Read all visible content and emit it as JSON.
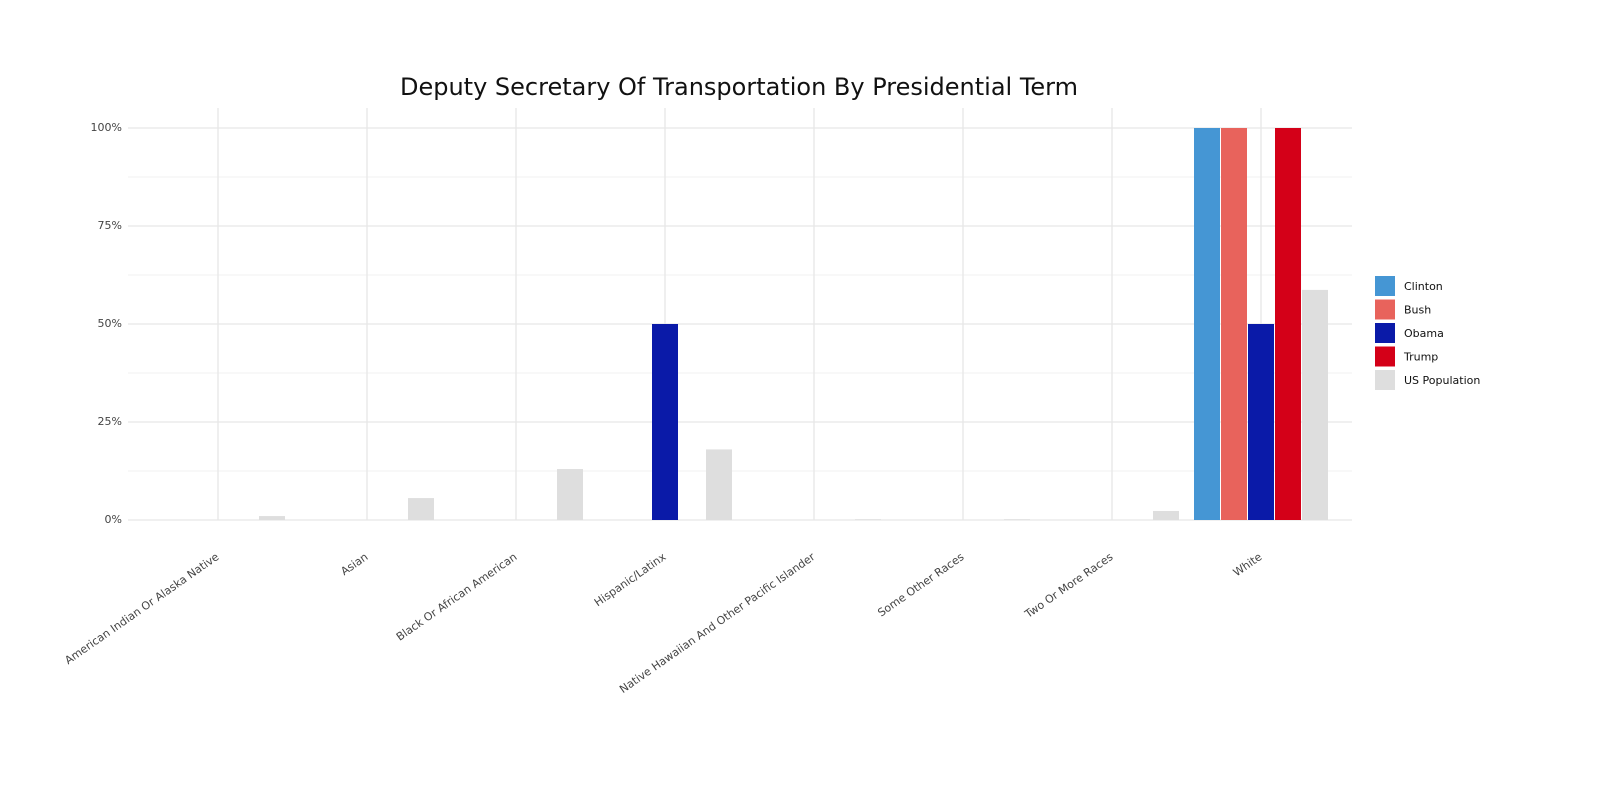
{
  "chart_data": {
    "type": "bar",
    "title": "Deputy Secretary Of Transportation By Presidential Term",
    "categories": [
      "American Indian Or Alaska Native",
      "Asian",
      "Black Or African American",
      "Hispanic/Latinx",
      "Native Hawaiian And Other Pacific Islander",
      "Some Other Races",
      "Two Or More Races",
      "White"
    ],
    "series": [
      {
        "name": "Clinton",
        "color": "#4596d4",
        "values": [
          0,
          0,
          0,
          0,
          0,
          0,
          0,
          100
        ]
      },
      {
        "name": "Bush",
        "color": "#e8635c",
        "values": [
          0,
          0,
          0,
          0,
          0,
          0,
          0,
          100
        ]
      },
      {
        "name": "Obama",
        "color": "#0a1aa8",
        "values": [
          0,
          0,
          0,
          50,
          0,
          0,
          0,
          50
        ]
      },
      {
        "name": "Trump",
        "color": "#d40018",
        "values": [
          0,
          0,
          0,
          0,
          0,
          0,
          0,
          100
        ]
      },
      {
        "name": "US Population",
        "color": "#dedede",
        "values": [
          1,
          5.6,
          13,
          18,
          0.2,
          0.2,
          2.3,
          58.7
        ]
      }
    ],
    "ylim": [
      0,
      100
    ],
    "yticks": [
      {
        "value": 0,
        "label": "0%"
      },
      {
        "value": 25,
        "label": "25%"
      },
      {
        "value": 50,
        "label": "50%"
      },
      {
        "value": 75,
        "label": "75%"
      },
      {
        "value": 100,
        "label": "100%"
      }
    ],
    "minor_yticks": [
      12.5,
      37.5,
      62.5,
      87.5
    ],
    "grid": true,
    "legend": "right"
  }
}
